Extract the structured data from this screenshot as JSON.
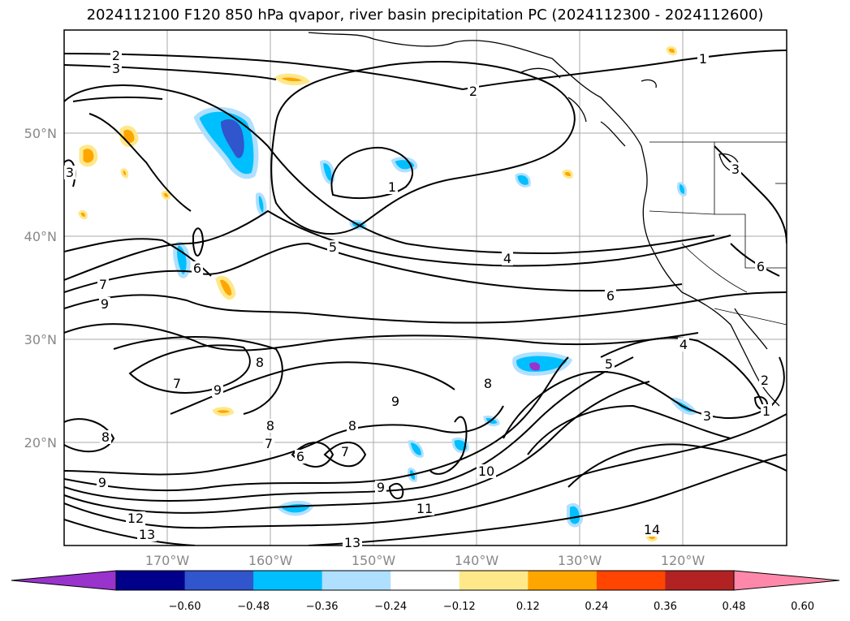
{
  "title": "2024112100 F120 850 hPa qvapor, river basin precipitation PC (2024112300 - 2024112600)",
  "lat_labels": [
    "50°N",
    "40°N",
    "30°N",
    "20°N"
  ],
  "lon_labels": [
    "170°W",
    "160°W",
    "150°W",
    "140°W",
    "130°W",
    "120°W"
  ],
  "colorbar": {
    "colors": [
      "#9933cc",
      "#00008b",
      "#3055cc",
      "#00bfff",
      "#b0e0ff",
      "#ffffff",
      "#ffe88a",
      "#ffa500",
      "#ff4500",
      "#b22222",
      "#ff88aa"
    ],
    "tick_labels": [
      "−0.60",
      "−0.48",
      "−0.36",
      "−0.24",
      "−0.12",
      "0.12",
      "0.24",
      "0.36",
      "0.48",
      "0.60"
    ]
  },
  "contour_labels": [
    {
      "text": "2",
      "id": "c2a"
    },
    {
      "text": "3",
      "id": "c3a"
    },
    {
      "text": "2",
      "id": "c2b"
    },
    {
      "text": "1",
      "id": "c1a"
    },
    {
      "text": "1",
      "id": "c1b"
    },
    {
      "text": "3",
      "id": "c3b"
    },
    {
      "text": "3",
      "id": "c3c"
    },
    {
      "text": "5",
      "id": "c5a"
    },
    {
      "text": "4",
      "id": "c4a"
    },
    {
      "text": "6",
      "id": "c6a"
    },
    {
      "text": "6",
      "id": "c6b"
    },
    {
      "text": "7",
      "id": "c7a"
    },
    {
      "text": "9",
      "id": "c9a"
    },
    {
      "text": "6",
      "id": "c6c"
    },
    {
      "text": "8",
      "id": "c8a"
    },
    {
      "text": "7",
      "id": "c7b"
    },
    {
      "text": "9",
      "id": "c9b"
    },
    {
      "text": "4",
      "id": "c4b"
    },
    {
      "text": "5",
      "id": "c5b"
    },
    {
      "text": "8",
      "id": "c8b"
    },
    {
      "text": "9",
      "id": "c9c"
    },
    {
      "text": "8",
      "id": "c8c"
    },
    {
      "text": "8",
      "id": "c8d"
    },
    {
      "text": "7",
      "id": "c7c"
    },
    {
      "text": "6",
      "id": "c6d"
    },
    {
      "text": "7",
      "id": "c7d"
    },
    {
      "text": "8",
      "id": "c8e"
    },
    {
      "text": "9",
      "id": "c9d"
    },
    {
      "text": "10",
      "id": "c10"
    },
    {
      "text": "9",
      "id": "c9e"
    },
    {
      "text": "11",
      "id": "c11"
    },
    {
      "text": "12",
      "id": "c12"
    },
    {
      "text": "13",
      "id": "c13a"
    },
    {
      "text": "13",
      "id": "c13b"
    },
    {
      "text": "14",
      "id": "c14"
    },
    {
      "text": "3",
      "id": "c3d"
    },
    {
      "text": "1",
      "id": "c1c"
    },
    {
      "text": "2",
      "id": "c2c"
    }
  ]
}
